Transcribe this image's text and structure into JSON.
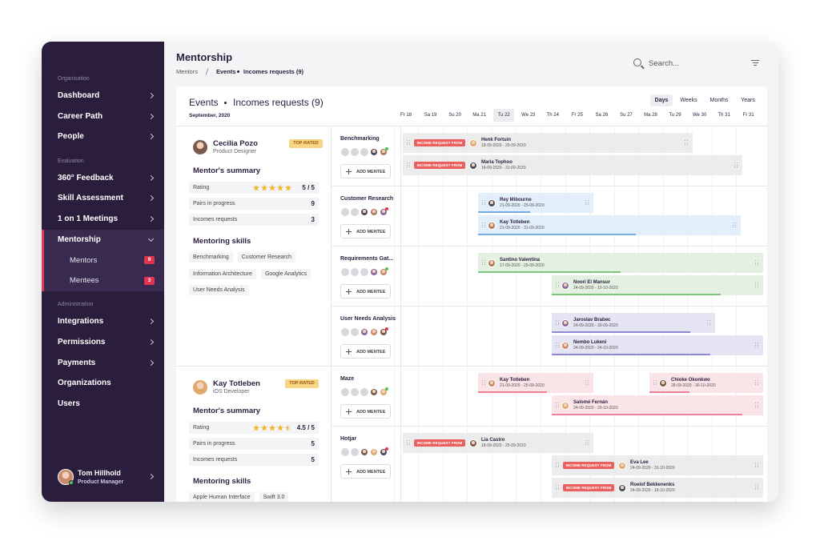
{
  "sidebar": {
    "sections": [
      {
        "label": "Organisation",
        "items": [
          {
            "label": "Dashboard",
            "arrow": true
          },
          {
            "label": "Career Path",
            "arrow": true
          },
          {
            "label": "People",
            "arrow": true
          }
        ]
      },
      {
        "label": "Evaluation",
        "items": [
          {
            "label": "360° Feedback",
            "arrow": true
          },
          {
            "label": "Skill Assessment",
            "arrow": true
          },
          {
            "label": "1 on 1 Meetings",
            "arrow": true
          },
          {
            "label": "Mentorship",
            "arrow": true,
            "expanded": true,
            "children": [
              {
                "label": "Mentors",
                "count": 9
              },
              {
                "label": "Mentees",
                "count": 3
              }
            ]
          }
        ]
      },
      {
        "label": "Administration",
        "items": [
          {
            "label": "Integrations",
            "arrow": true
          },
          {
            "label": "Permissions",
            "arrow": true
          },
          {
            "label": "Payments",
            "arrow": true
          },
          {
            "label": "Organizations",
            "arrow": false
          },
          {
            "label": "Users",
            "arrow": false
          }
        ]
      }
    ],
    "user": {
      "name": "Tom Hillhold",
      "role": "Product Manager"
    }
  },
  "header": {
    "title": "Mentorship",
    "breadcrumb": [
      "Mentors",
      "Events",
      "Incomes requests (9)"
    ],
    "search_placeholder": "Search..."
  },
  "card": {
    "title": "Events",
    "subtitle": "Incomes requests (9)",
    "period": "September, 2020",
    "views": [
      "Days",
      "Weeks",
      "Months",
      "Years"
    ],
    "active_view": 0,
    "days": [
      "Fr 18",
      "Sa 19",
      "Su 20",
      "Ma 21",
      "Tu 22",
      "We 23",
      "Th 24",
      "Fr 25",
      "Sa 26",
      "Su 27",
      "Ma 28",
      "Tu 29",
      "We 30",
      "Th 31",
      "Fr 31"
    ],
    "today": 4,
    "add_label": "ADD MENTEE"
  },
  "mentors": [
    {
      "name": "Cecilia Pozo",
      "role": "Product Designer",
      "badge": "TOP-RATED",
      "summary_title": "Mentor's summary",
      "rows": [
        {
          "label": "Rating",
          "value": "5 / 5",
          "stars": 5
        },
        {
          "label": "Pairs in progress",
          "value": 9
        },
        {
          "label": "Incomes requests",
          "value": 3
        }
      ],
      "skills_title": "Mentoring skills",
      "skills": [
        "Benchmarking",
        "Customer Research",
        "Information Architecture",
        "Google Analytics",
        "User Needs Analysis"
      ]
    },
    {
      "name": "Kay Totleben",
      "role": "iOS Developer",
      "badge": "TOP-RATED",
      "summary_title": "Mentor's summary",
      "rows": [
        {
          "label": "Rating",
          "value": "4.5 / 5",
          "stars": 4.5
        },
        {
          "label": "Pairs in progress",
          "value": 5
        },
        {
          "label": "Incomes requests",
          "value": 5
        }
      ],
      "skills_title": "Mentoring skills",
      "skills": [
        "Apple Human Interface",
        "Swift 3.0"
      ]
    }
  ],
  "lanes": [
    {
      "skill": "Benchmarking",
      "color": "#ececec",
      "events": [
        {
          "tag": "INCOME REQUEST FROM",
          "name": "Henk Fortuin",
          "dates": "18-09-2020 - 29-09-2020"
        },
        {
          "tag": "INCOME REQUEST FROM",
          "name": "Maria Tophoo",
          "dates": "18-09-2020 - 31-09-2020"
        }
      ]
    },
    {
      "skill": "Customer Research",
      "color": "#e2eef9",
      "accent": "#74aee0",
      "events": [
        {
          "name": "Rey Mibourne",
          "dates": "21-09-2020 - 25-09-2020"
        },
        {
          "name": "Kay Totleben",
          "dates": "21-09-2020 - 31-09-2020"
        }
      ]
    },
    {
      "skill": "Requirements Gat...",
      "color": "#e4f1e2",
      "accent": "#7fc67c",
      "events": [
        {
          "name": "Santino Valentina",
          "dates": "17-09-2020 - 29-09-2020"
        },
        {
          "name": "Noori El Mansur",
          "dates": "24-09-2020 - 10-10-2020"
        }
      ]
    },
    {
      "skill": "User Needs Analysis",
      "color": "#e5e4f3",
      "accent": "#8d88d3",
      "events": [
        {
          "name": "Jaroslav Brabec",
          "dates": "24-09-2020 - 30-09-2020"
        },
        {
          "name": "Nembo Lukeni",
          "dates": "24-09-2020 - 24-10-2020"
        }
      ]
    },
    {
      "skill": "Maze",
      "color": "#fbe4e8",
      "accent": "#ee8098",
      "events": [
        {
          "name": "Kay Totleben",
          "dates": "21-09-2020 - 25-09-2020"
        },
        {
          "name": "Chioke Okonkwo",
          "dates": "28-09-2020 - 30-10-2020"
        },
        {
          "name": "Salomé Fernán",
          "dates": "24-09-2020 - 29-10-2020"
        }
      ]
    },
    {
      "skill": "Hotjar",
      "color": "#ececec",
      "events": [
        {
          "tag": "INCOME REQUEST FROM",
          "name": "Lia Castro",
          "dates": "18-09-2020 - 25-09-2020"
        },
        {
          "tag": "INCOME REQUEST FROM",
          "name": "Eva Lee",
          "dates": "24-09-2020 - 31-10-2020"
        },
        {
          "tag": "INCOME REQUEST FROM",
          "name": "Roelof Bekkenenks",
          "dates": "24-09-2020 - 18-10-2020"
        }
      ]
    }
  ]
}
